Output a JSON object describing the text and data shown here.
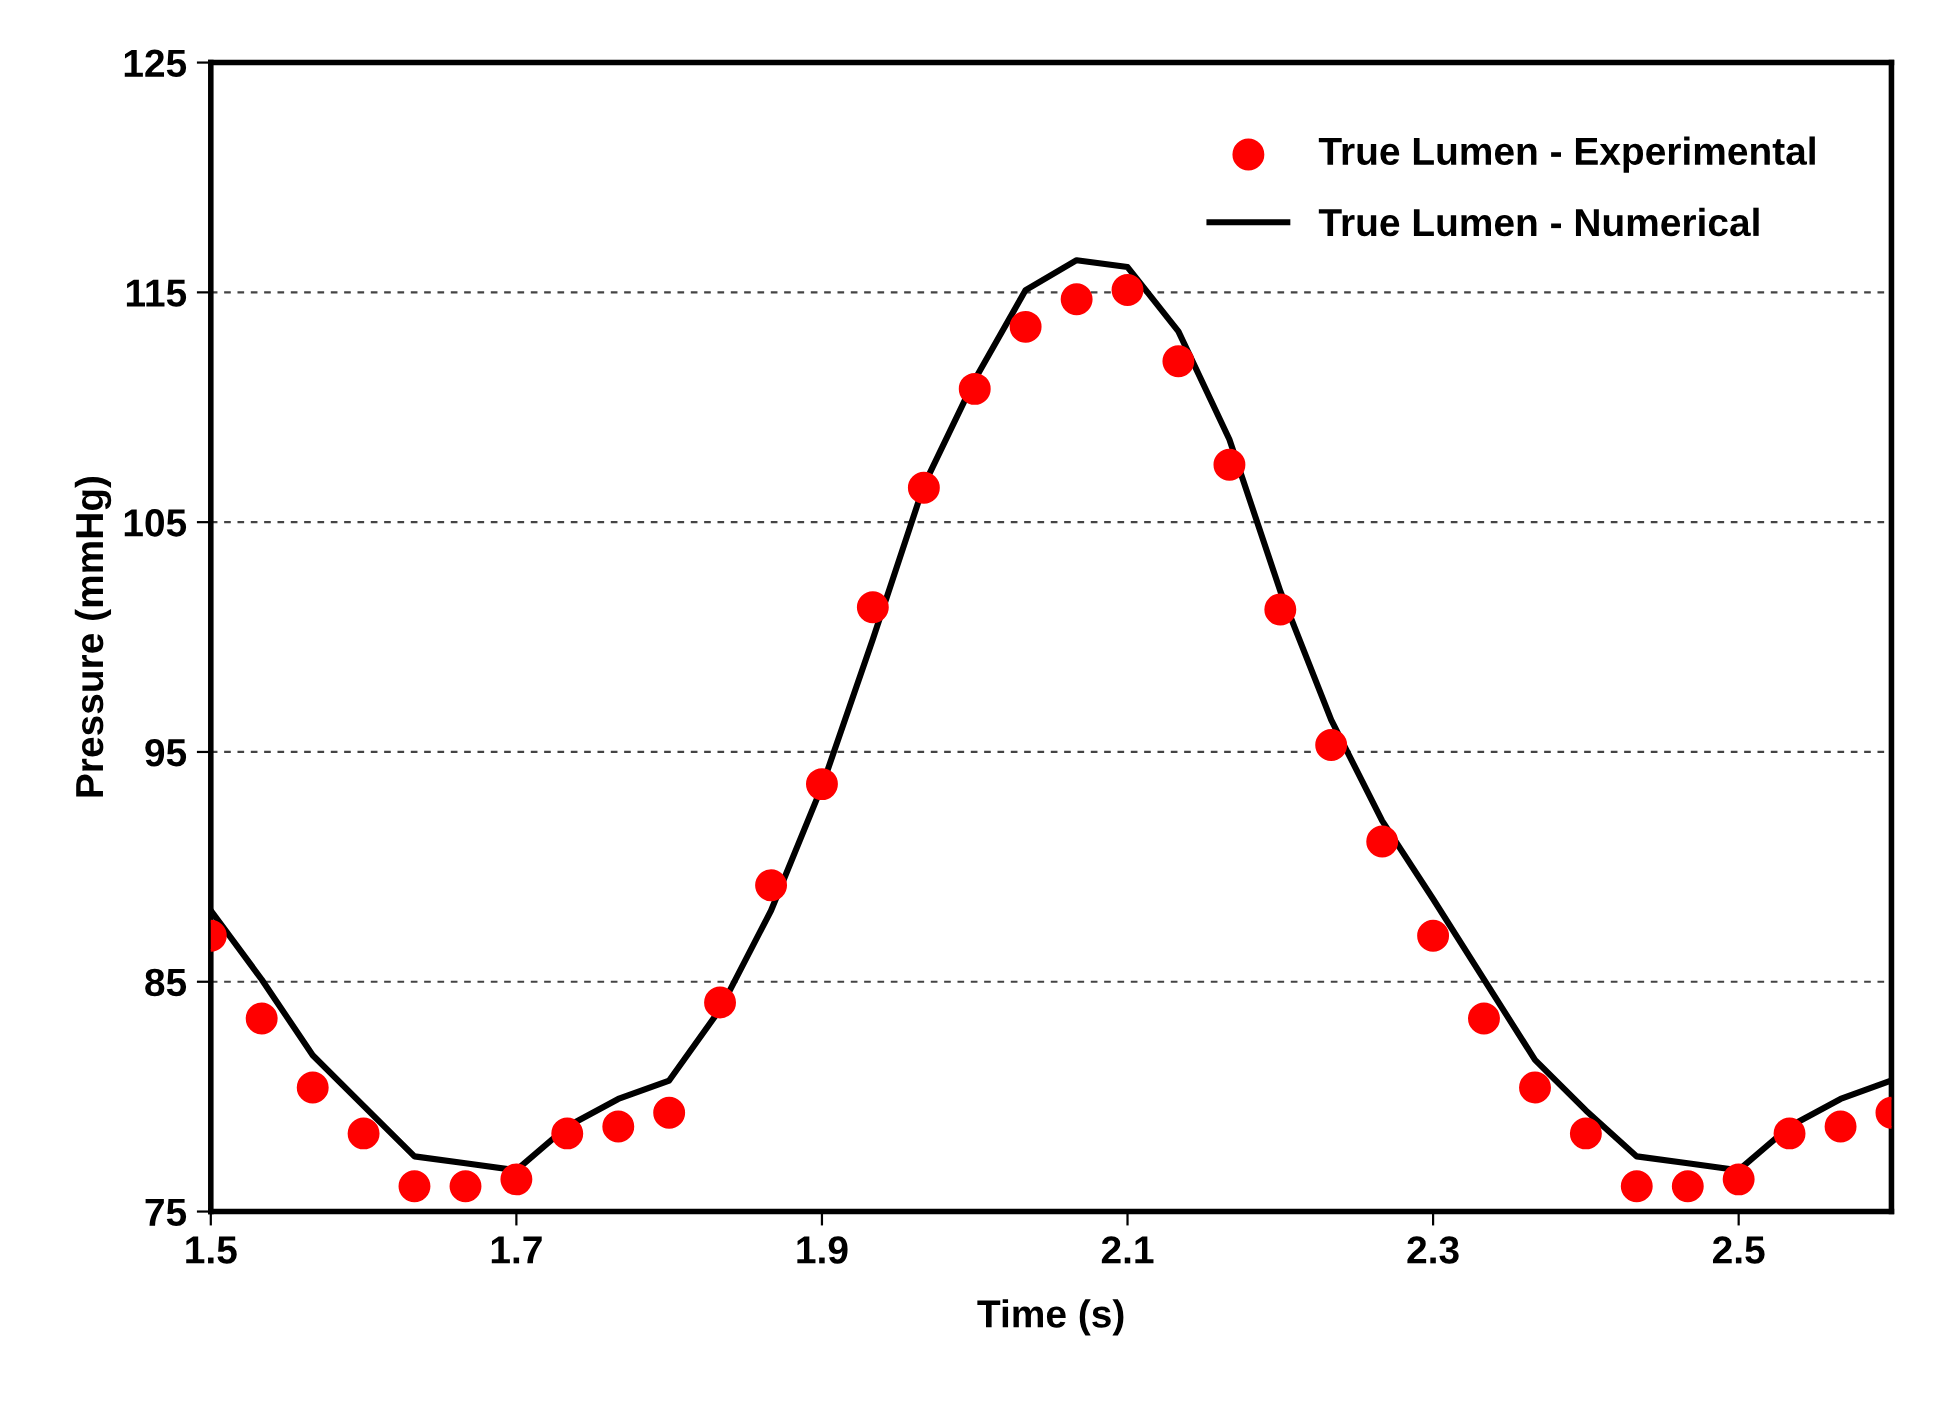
{
  "chart_data": {
    "type": "scatter",
    "xlabel": "Time (s)",
    "ylabel": "Pressure (mmHg)",
    "xlim": [
      1.5,
      2.6
    ],
    "xticks": [
      1.5,
      1.7,
      1.9,
      2.1,
      2.3,
      2.5
    ],
    "ylim": [
      75,
      125
    ],
    "yticks": [
      75,
      85,
      95,
      105,
      115,
      125
    ],
    "grid": "y",
    "legend": "top right",
    "series": [
      {
        "name": "True Lumen - Experimental",
        "marker": "circle",
        "color": "#ff0000",
        "x": [
          1.5,
          1.5333,
          1.5667,
          1.6,
          1.6333,
          1.6667,
          1.7,
          1.7333,
          1.7667,
          1.8,
          1.8333,
          1.8667,
          1.9,
          1.9333,
          1.9667,
          2.0,
          2.0333,
          2.0667,
          2.1,
          2.1333,
          2.1667,
          2.2,
          2.2333,
          2.2667,
          2.3,
          2.3333,
          2.3667,
          2.4,
          2.4333,
          2.4667,
          2.5,
          2.5333,
          2.5667,
          2.6
        ],
        "values": [
          87.0,
          83.4,
          80.4,
          78.4,
          76.1,
          76.1,
          76.4,
          78.4,
          78.7,
          79.3,
          84.1,
          89.2,
          93.6,
          101.3,
          106.5,
          110.8,
          113.5,
          114.7,
          115.1,
          112.0,
          107.5,
          101.2,
          95.3,
          91.1,
          87.0,
          83.4,
          80.4,
          78.4,
          76.1,
          76.1,
          76.4,
          78.4,
          78.7,
          79.3
        ]
      },
      {
        "name": "True Lumen - Numerical",
        "type": "line",
        "marker": "none",
        "line_style": "solid",
        "color": "#000000",
        "x": [
          1.5,
          1.5333,
          1.5667,
          1.6,
          1.6333,
          1.6667,
          1.7,
          1.7333,
          1.7667,
          1.8,
          1.8333,
          1.8667,
          1.9,
          1.9333,
          1.9667,
          2.0,
          2.0333,
          2.0667,
          2.1,
          2.1333,
          2.1667,
          2.2,
          2.2333,
          2.2667,
          2.3,
          2.3333,
          2.3667,
          2.4,
          2.4333,
          2.4667,
          2.5,
          2.5333,
          2.5667,
          2.6
        ],
        "values": [
          88.1,
          85.1,
          81.8,
          79.6,
          77.4,
          77.1,
          76.8,
          78.7,
          79.9,
          80.7,
          83.8,
          88.1,
          93.5,
          99.9,
          106.6,
          111.2,
          115.1,
          116.4,
          116.1,
          113.3,
          108.6,
          102.0,
          96.4,
          92.0,
          88.6,
          85.1,
          81.6,
          79.4,
          77.4,
          77.1,
          76.8,
          78.7,
          79.9,
          80.7
        ]
      }
    ]
  }
}
